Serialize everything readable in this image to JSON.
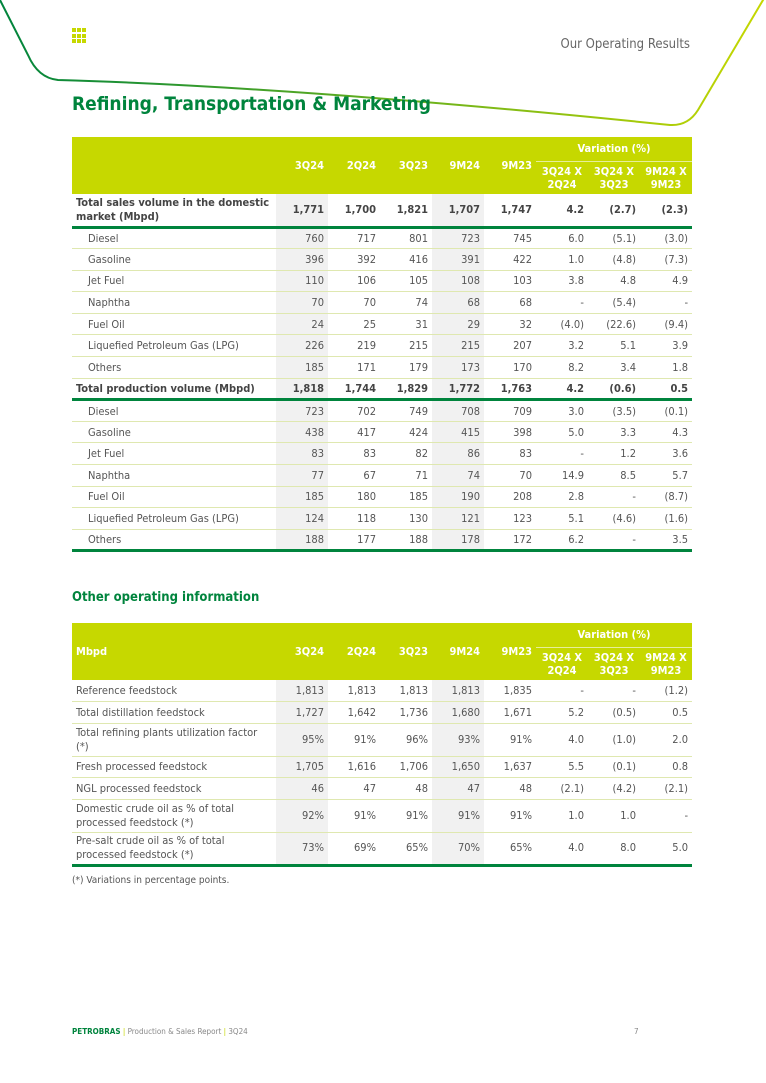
{
  "header": {
    "section": "Our Operating Results",
    "colors": {
      "green": "#00843d",
      "lime": "#c6d800"
    }
  },
  "title": "Refining, Transportation & Marketing",
  "columns": [
    "3Q24",
    "2Q24",
    "3Q23",
    "9M24",
    "9M23"
  ],
  "variation_label": "Variation (%)",
  "variation_columns": [
    [
      "3Q24 X",
      "2Q24"
    ],
    [
      "3Q24 X",
      "3Q23"
    ],
    [
      "9M24 X",
      "9M23"
    ]
  ],
  "table1": {
    "corner": "",
    "rows": [
      {
        "label": "Total sales volume in the domestic market (Mbpd)",
        "type": "total",
        "values": [
          "1,771",
          "1,700",
          "1,821",
          "1,707",
          "1,747",
          "4.2",
          "(2.7)",
          "(2.3)"
        ]
      },
      {
        "label": "Diesel",
        "values": [
          "760",
          "717",
          "801",
          "723",
          "745",
          "6.0",
          "(5.1)",
          "(3.0)"
        ]
      },
      {
        "label": "Gasoline",
        "values": [
          "396",
          "392",
          "416",
          "391",
          "422",
          "1.0",
          "(4.8)",
          "(7.3)"
        ]
      },
      {
        "label": "Jet Fuel",
        "values": [
          "110",
          "106",
          "105",
          "108",
          "103",
          "3.8",
          "4.8",
          "4.9"
        ]
      },
      {
        "label": "Naphtha",
        "values": [
          "70",
          "70",
          "74",
          "68",
          "68",
          "-",
          "(5.4)",
          "-"
        ]
      },
      {
        "label": "Fuel Oil",
        "values": [
          "24",
          "25",
          "31",
          "29",
          "32",
          "(4.0)",
          "(22.6)",
          "(9.4)"
        ]
      },
      {
        "label": "Liquefied Petroleum Gas (LPG)",
        "values": [
          "226",
          "219",
          "215",
          "215",
          "207",
          "3.2",
          "5.1",
          "3.9"
        ]
      },
      {
        "label": "Others",
        "values": [
          "185",
          "171",
          "179",
          "173",
          "170",
          "8.2",
          "3.4",
          "1.8"
        ]
      },
      {
        "label": "Total production volume (Mbpd)",
        "type": "total",
        "values": [
          "1,818",
          "1,744",
          "1,829",
          "1,772",
          "1,763",
          "4.2",
          "(0.6)",
          "0.5"
        ]
      },
      {
        "label": "Diesel",
        "values": [
          "723",
          "702",
          "749",
          "708",
          "709",
          "3.0",
          "(3.5)",
          "(0.1)"
        ]
      },
      {
        "label": "Gasoline",
        "values": [
          "438",
          "417",
          "424",
          "415",
          "398",
          "5.0",
          "3.3",
          "4.3"
        ]
      },
      {
        "label": "Jet Fuel",
        "values": [
          "83",
          "83",
          "82",
          "86",
          "83",
          "-",
          "1.2",
          "3.6"
        ]
      },
      {
        "label": "Naphtha",
        "values": [
          "77",
          "67",
          "71",
          "74",
          "70",
          "14.9",
          "8.5",
          "5.7"
        ]
      },
      {
        "label": "Fuel Oil",
        "values": [
          "185",
          "180",
          "185",
          "190",
          "208",
          "2.8",
          "-",
          "(8.7)"
        ]
      },
      {
        "label": "Liquefied Petroleum Gas (LPG)",
        "values": [
          "124",
          "118",
          "130",
          "121",
          "123",
          "5.1",
          "(4.6)",
          "(1.6)"
        ]
      },
      {
        "label": "Others",
        "type": "last",
        "values": [
          "188",
          "177",
          "188",
          "178",
          "172",
          "6.2",
          "-",
          "3.5"
        ]
      }
    ]
  },
  "subtitle": "Other operating information",
  "table2": {
    "corner": "Mbpd",
    "rows": [
      {
        "label": "Reference feedstock",
        "values": [
          "1,813",
          "1,813",
          "1,813",
          "1,813",
          "1,835",
          "-",
          "-",
          "(1.2)"
        ]
      },
      {
        "label": "Total distillation feedstock",
        "values": [
          "1,727",
          "1,642",
          "1,736",
          "1,680",
          "1,671",
          "5.2",
          "(0.5)",
          "0.5"
        ]
      },
      {
        "label": "Total refining plants utilization factor (*)",
        "type": "tall",
        "values": [
          "95%",
          "91%",
          "96%",
          "93%",
          "91%",
          "4.0",
          "(1.0)",
          "2.0"
        ]
      },
      {
        "label": "Fresh processed feedstock",
        "values": [
          "1,705",
          "1,616",
          "1,706",
          "1,650",
          "1,637",
          "5.5",
          "(0.1)",
          "0.8"
        ]
      },
      {
        "label": "NGL processed feedstock",
        "values": [
          "46",
          "47",
          "48",
          "47",
          "48",
          "(2.1)",
          "(4.2)",
          "(2.1)"
        ]
      },
      {
        "label": "Domestic crude oil as % of total processed feedstock (*)",
        "type": "tall",
        "values": [
          "92%",
          "91%",
          "91%",
          "91%",
          "91%",
          "1.0",
          "1.0",
          "-"
        ]
      },
      {
        "label": "Pre-salt crude oil as % of total processed feedstock (*)",
        "type": "tall last",
        "values": [
          "73%",
          "69%",
          "65%",
          "70%",
          "65%",
          "4.0",
          "8.0",
          "5.0"
        ]
      }
    ]
  },
  "footnote": "(*) Variations in percentage points.",
  "footer": {
    "brand": "PETROBRAS",
    "report": "Production & Sales Report",
    "period": "3Q24",
    "page": "7"
  }
}
